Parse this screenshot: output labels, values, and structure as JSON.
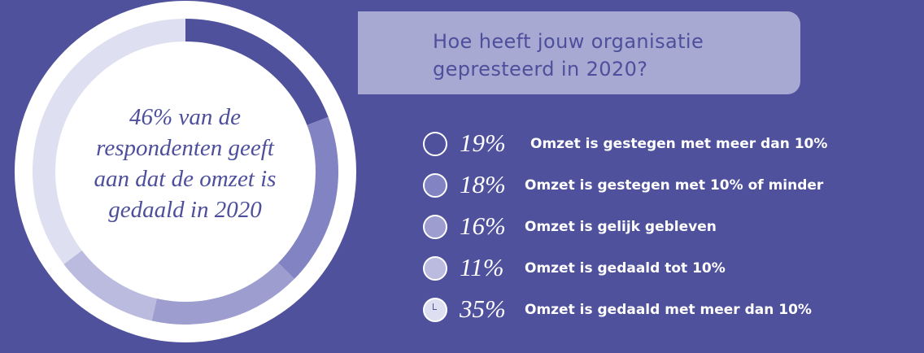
{
  "chart_data": {
    "type": "donut",
    "title": "Hoe heeft jouw organisatie gepresteerd in 2020?",
    "title_lines": [
      "Hoe heeft jouw organisatie",
      "gepresteerd in 2020?"
    ],
    "center_text_lines": [
      "46% van de",
      "respondenten geeft",
      "aan dat de omzet is",
      "gedaald in 2020"
    ],
    "unit": "%",
    "slices": [
      {
        "value": 19,
        "label": "19%",
        "name": "Omzet is gestegen met meer dan 10%",
        "color": "#4f519c"
      },
      {
        "value": 18,
        "label": "18%",
        "name": "Omzet is gestegen met 10% of minder",
        "color": "#8283c2"
      },
      {
        "value": 16,
        "label": "16%",
        "name": "Omzet is gelijk gebleven",
        "color": "#9d9ecf"
      },
      {
        "value": 11,
        "label": "11%",
        "name": "Omzet is gedaald tot 10%",
        "color": "#babbdf"
      },
      {
        "value": 35,
        "label": "35%",
        "name": "Omzet is gedaald met meer dan 10%",
        "color": "#dedff0"
      }
    ]
  },
  "colors": {
    "background": "#4f519c",
    "title_box": "#a8a9d2",
    "text_dark": "#4d4f9c",
    "text_light": "#ffffff"
  }
}
